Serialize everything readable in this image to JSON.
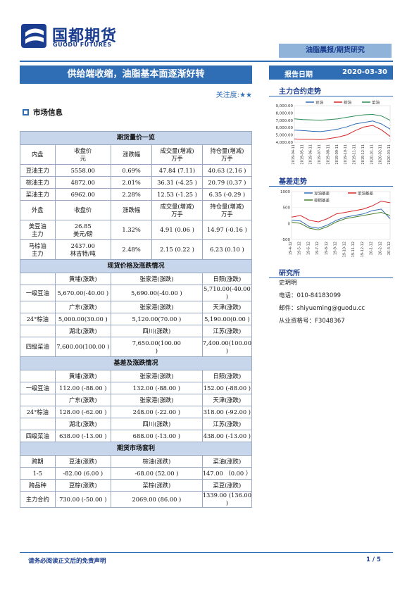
{
  "header": {
    "logo_cn": "国都期货",
    "logo_en": "GUODU FUTURES",
    "tag": "油脂晨报/期货研究",
    "title": "供给端收缩，油脂基本面逐渐好转",
    "date_label": "报告日期",
    "date_value": "2020-03-30",
    "attention_label": "关注度:",
    "attention_stars": "★★"
  },
  "section_market": "市场信息",
  "table": {
    "futures_title": "期货量价一览",
    "domestic_head": [
      "内盘",
      "收盘价\n元",
      "涨跌幅",
      "成交量(增减)\n万手",
      "持仓量(增减)\n万手"
    ],
    "domestic_rows": [
      [
        "豆油主力",
        "5558.00",
        "0.69%",
        "47.84 (7.11)",
        "40.63 (2.16 )"
      ],
      [
        "棕油主力",
        "4872.00",
        "2.01%",
        "36.31 (-4.25 )",
        "20.79 (0.37 )"
      ],
      [
        "菜油主力",
        "6962.00",
        "2.28%",
        "12.53 (-1.25 )",
        "6.35 (-0.29 )"
      ]
    ],
    "foreign_head": [
      "外盘",
      "收盘价",
      "涨跌幅",
      "成交量(增减)\n万手",
      "持仓量(增减)\n万手"
    ],
    "foreign_rows": [
      [
        "美豆油\n主力",
        "26.85\n美元/磅",
        "1.32%",
        "4.91 (0.06 )",
        "14.97 (-0.16 )"
      ],
      [
        "马棕油\n主力",
        "2437.00\n林吉特/吨",
        "2.48%",
        "2.15 (0.22 )",
        "6.23 (0.10 )"
      ]
    ],
    "spot_title": "现货价格及涨跌情况",
    "spot_blocks": [
      {
        "product": "一级豆油",
        "regions": [
          "黄埔(涨跌)",
          "张家港(涨跌)",
          "日照(涨跌)"
        ],
        "values": [
          "5,670.00(-40.00 )",
          "5,690.00(-40.00 )",
          "5,710.00(-40.00 )"
        ]
      },
      {
        "product": "24°棕油",
        "regions": [
          "广东(涨跌)",
          "张家港(涨跌)",
          "天津(涨跌)"
        ],
        "values": [
          "5,000.00(30.00 )",
          "5,120.00(70.00 )",
          "5,190.00(0.00 )"
        ]
      },
      {
        "product": "四级菜油",
        "regions": [
          "湖北(涨跌)",
          "四川(涨跌)",
          "江苏(涨跌)"
        ],
        "values": [
          "7,600.00(100.00 )",
          "7,650.00(100.00\n)",
          "7,400.00(100.00 )"
        ]
      }
    ],
    "basis_title": "基差及涨跌情况",
    "basis_blocks": [
      {
        "product": "一级豆油",
        "regions": [
          "黄埔(涨跌)",
          "张家港(涨跌)",
          "日照(涨跌)"
        ],
        "values": [
          "112.00 (-88.00 )",
          "132.00 (-88.00 )",
          "152.00 (-88.00 )"
        ]
      },
      {
        "product": "24°棕油",
        "regions": [
          "广东(涨跌)",
          "张家港(涨跌)",
          "天津(涨跌)"
        ],
        "values": [
          "128.00 (-62.00 )",
          "248.00 (-22.00 )",
          "318.00 (-92.00 )"
        ]
      },
      {
        "product": "四级菜油",
        "regions": [
          "湖北(涨跌)",
          "四川(涨跌)",
          "江苏(涨跌)"
        ],
        "values": [
          "638.00 (-13.00 )",
          "688.00 (-13.00 )",
          "438.00 (-13.00 )"
        ]
      }
    ],
    "arb_title": "期货市场套利",
    "arb_rows": [
      [
        "跨期",
        "豆油(涨跌)",
        "棕油(涨跌)",
        "菜油(涨跌)"
      ],
      [
        "1-5",
        "-82.00 (6.00 )",
        "-68.00 (52.00 )",
        "147.00 （0.00 ）"
      ],
      [
        "跨品种",
        "豆棕(涨跌)",
        "菜棕(涨跌)",
        "菜豆(涨跌)"
      ],
      [
        "主力合约",
        "730.00 (-50.00 )",
        "2069.00 (86.00 )",
        "1339.00 (136.00 )"
      ]
    ]
  },
  "right": {
    "chart1_title": "主力合约走势",
    "chart2_title": "基差走势",
    "research_title": "研究所",
    "analyst": "史玥明",
    "phone": "电话：010-84183099",
    "email": "邮件：shiyueming@guodu.cc",
    "license": "从业资格号：F3048367"
  },
  "footer": {
    "disclaimer": "请务必阅读正文后的免责声明",
    "page": "1 / 5"
  },
  "chart_data": [
    {
      "type": "line",
      "title": "主力合约走势",
      "legend_position": "top",
      "ylim": [
        4000,
        9000
      ],
      "y_ticks": [
        "9,000.00",
        "8,000.00",
        "7,000.00",
        "6,000.00",
        "5,000.00",
        "4,000.00"
      ],
      "x": [
        "2019-04-11",
        "2019-05-11",
        "2019-06-11",
        "2019-07-11",
        "2019-08-11",
        "2019-09-11",
        "2019-10-11",
        "2019-11-11",
        "2019-12-11",
        "2020-01-11",
        "2020-02-11",
        "2020-03-11"
      ],
      "series": [
        {
          "name": "豆油",
          "color": "#2f6db5",
          "values": [
            5650,
            5600,
            5500,
            5450,
            5600,
            5800,
            6100,
            6500,
            6700,
            6900,
            6500,
            5800
          ]
        },
        {
          "name": "棕油",
          "color": "#d62728",
          "values": [
            4450,
            4400,
            4400,
            4350,
            4500,
            4700,
            5000,
            5600,
            6100,
            6300,
            5700,
            4800
          ]
        },
        {
          "name": "菜油",
          "color": "#2e8b57",
          "values": [
            7200,
            7100,
            7050,
            7000,
            7100,
            7200,
            7400,
            7600,
            7750,
            7800,
            7600,
            7000
          ]
        }
      ]
    },
    {
      "type": "line",
      "title": "基差走势",
      "legend_position": "top",
      "ylim": [
        -500,
        1000
      ],
      "y_ticks": [
        "1000",
        "500",
        "0",
        "-500"
      ],
      "x": [
        "19-4-12",
        "19-5-12",
        "19-6-12",
        "19-7-12",
        "19-8-12",
        "19-9-12",
        "19-10-12",
        "19-11-12",
        "19-12-12",
        "20-1-12",
        "20-2-12",
        "20-3-12"
      ],
      "series": [
        {
          "name": "豆油基差",
          "color": "#2f6db5",
          "values": [
            100,
            80,
            -100,
            -150,
            -50,
            100,
            200,
            250,
            300,
            400,
            450,
            150
          ]
        },
        {
          "name": "菜油基差",
          "color": "#d62728",
          "values": [
            200,
            250,
            100,
            50,
            150,
            300,
            350,
            400,
            450,
            550,
            700,
            650
          ]
        },
        {
          "name": "棕榈基差",
          "color": "#4b7f2f",
          "values": [
            50,
            0,
            -150,
            -200,
            -100,
            50,
            150,
            200,
            250,
            300,
            350,
            250
          ]
        }
      ]
    }
  ]
}
